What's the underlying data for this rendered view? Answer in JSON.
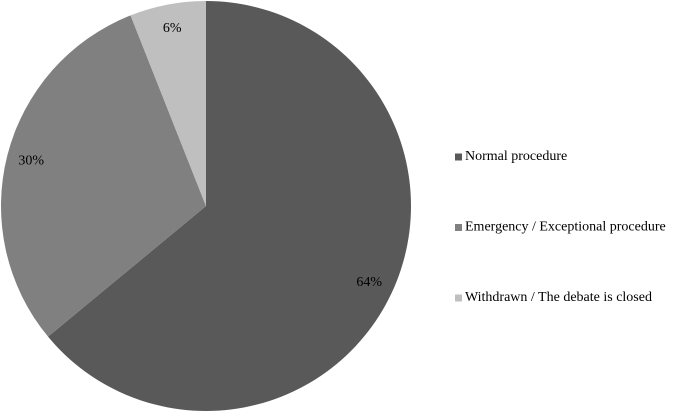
{
  "chart_data": {
    "type": "pie",
    "categories": [
      "Normal procedure",
      "Emergency / Exceptional procedure",
      "Withdrawn / The debate is closed"
    ],
    "values": [
      64,
      30,
      6
    ],
    "value_labels": [
      "64%",
      "30%",
      "6%"
    ],
    "colors": [
      "#595959",
      "#808080",
      "#bfbfbf"
    ],
    "legend": "right"
  }
}
